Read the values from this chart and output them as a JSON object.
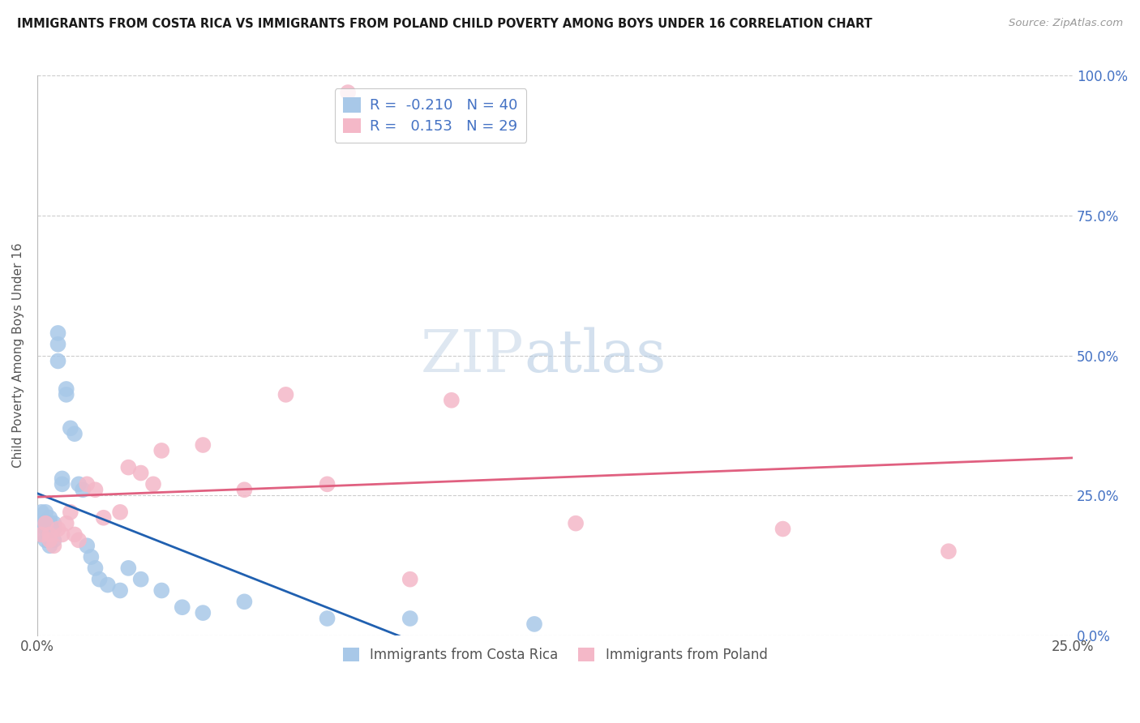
{
  "title": "IMMIGRANTS FROM COSTA RICA VS IMMIGRANTS FROM POLAND CHILD POVERTY AMONG BOYS UNDER 16 CORRELATION CHART",
  "source": "Source: ZipAtlas.com",
  "ylabel": "Child Poverty Among Boys Under 16",
  "xlim": [
    0.0,
    0.25
  ],
  "ylim": [
    0.0,
    1.0
  ],
  "xticks": [
    0.0,
    0.05,
    0.1,
    0.15,
    0.2,
    0.25
  ],
  "xtick_labels": [
    "0.0%",
    "",
    "",
    "",
    "",
    "25.0%"
  ],
  "yticks": [
    0.0,
    0.25,
    0.5,
    0.75,
    1.0
  ],
  "ytick_labels_right": [
    "0.0%",
    "25.0%",
    "50.0%",
    "75.0%",
    "100.0%"
  ],
  "legend_entries": [
    "Immigrants from Costa Rica",
    "Immigrants from Poland"
  ],
  "costa_rica_color": "#a8c8e8",
  "poland_color": "#f4b8c8",
  "costa_rica_line_color": "#2060b0",
  "poland_line_color": "#e06080",
  "R_costa_rica": -0.21,
  "N_costa_rica": 40,
  "R_poland": 0.153,
  "N_poland": 29,
  "background_color": "#ffffff",
  "grid_color": "#cccccc",
  "costa_rica_x": [
    0.001,
    0.001,
    0.001,
    0.002,
    0.002,
    0.002,
    0.002,
    0.003,
    0.003,
    0.003,
    0.003,
    0.004,
    0.004,
    0.004,
    0.005,
    0.005,
    0.005,
    0.006,
    0.006,
    0.007,
    0.007,
    0.008,
    0.009,
    0.01,
    0.011,
    0.012,
    0.013,
    0.014,
    0.015,
    0.017,
    0.02,
    0.022,
    0.025,
    0.03,
    0.035,
    0.04,
    0.05,
    0.07,
    0.09,
    0.12
  ],
  "costa_rica_y": [
    0.22,
    0.2,
    0.18,
    0.22,
    0.2,
    0.19,
    0.17,
    0.21,
    0.2,
    0.18,
    0.16,
    0.2,
    0.19,
    0.17,
    0.54,
    0.52,
    0.49,
    0.28,
    0.27,
    0.44,
    0.43,
    0.37,
    0.36,
    0.27,
    0.26,
    0.16,
    0.14,
    0.12,
    0.1,
    0.09,
    0.08,
    0.12,
    0.1,
    0.08,
    0.05,
    0.04,
    0.06,
    0.03,
    0.03,
    0.02
  ],
  "poland_x": [
    0.001,
    0.002,
    0.003,
    0.003,
    0.004,
    0.005,
    0.006,
    0.007,
    0.008,
    0.009,
    0.01,
    0.012,
    0.014,
    0.016,
    0.02,
    0.022,
    0.025,
    0.028,
    0.03,
    0.04,
    0.05,
    0.06,
    0.07,
    0.075,
    0.09,
    0.1,
    0.13,
    0.18,
    0.22
  ],
  "poland_y": [
    0.18,
    0.2,
    0.18,
    0.17,
    0.16,
    0.19,
    0.18,
    0.2,
    0.22,
    0.18,
    0.17,
    0.27,
    0.26,
    0.21,
    0.22,
    0.3,
    0.29,
    0.27,
    0.33,
    0.34,
    0.26,
    0.43,
    0.27,
    0.97,
    0.1,
    0.42,
    0.2,
    0.19,
    0.15
  ]
}
